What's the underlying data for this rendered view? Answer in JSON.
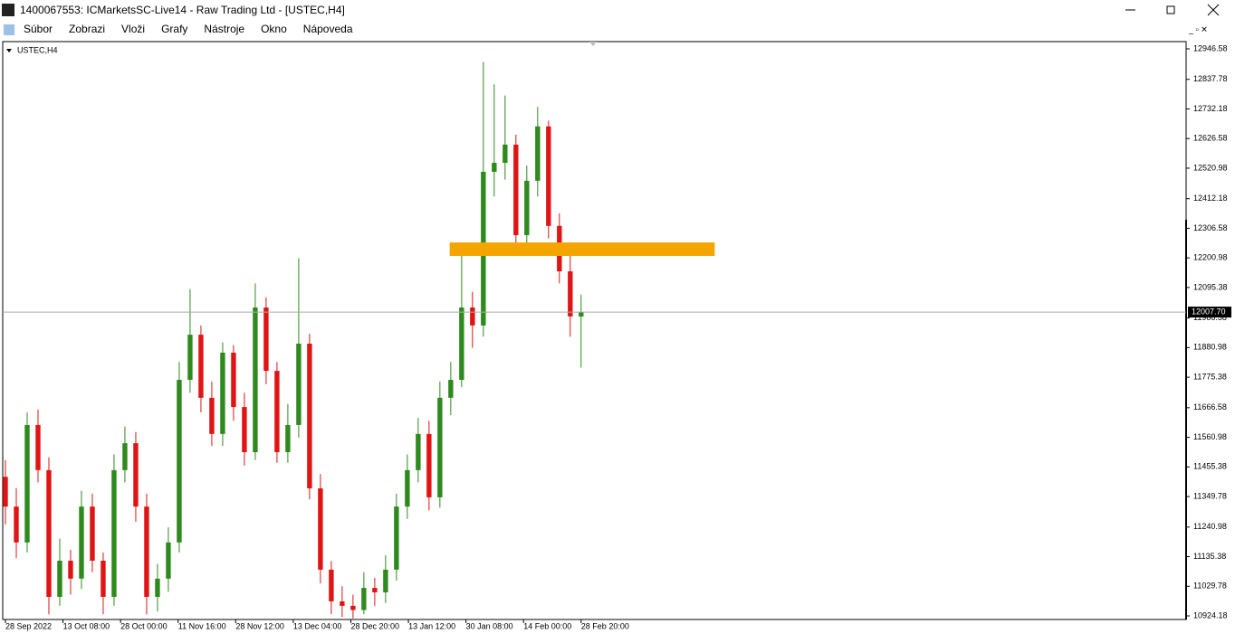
{
  "window": {
    "title": "1400067553: ICMarketsSC-Live14 - Raw Trading Ltd - [USTEC,H4]"
  },
  "menu": [
    "Súbor",
    "Zobrazi",
    "Vloži",
    "Grafy",
    "Nástroje",
    "Okno",
    "Nápoveda"
  ],
  "chart_data": {
    "type": "candlestick",
    "symbol": "USTEC,H4",
    "open": [
      11420,
      11314,
      11186,
      11605,
      11444,
      10992,
      11121,
      11057,
      11314,
      11121,
      10992,
      11444,
      11540,
      11314,
      10992,
      11057,
      11186,
      11766,
      11927,
      11702,
      11573,
      11863,
      11669,
      11508,
      12024,
      11798,
      11508,
      11605,
      11895,
      11379,
      11089,
      10976,
      10960,
      10945,
      11024,
      11008,
      11089,
      11314,
      11444,
      11573,
      11347,
      11702,
      11766,
      12024,
      11960,
      12508,
      12540,
      12605,
      12282,
      12476,
      12670,
      12315,
      12153,
      11992
    ],
    "high": [
      11480,
      11380,
      11650,
      11660,
      11490,
      11200,
      11160,
      11370,
      11360,
      11150,
      11500,
      11600,
      11580,
      11360,
      11110,
      11240,
      11830,
      12090,
      11960,
      11760,
      11900,
      11890,
      11720,
      12110,
      12060,
      11830,
      11680,
      12200,
      11930,
      11430,
      11120,
      11030,
      11000,
      11080,
      11060,
      11140,
      11360,
      11500,
      11630,
      11620,
      11760,
      11830,
      12245,
      12080,
      12900,
      12820,
      12780,
      12640,
      12530,
      12740,
      12690,
      12360,
      12220,
      12070
    ],
    "low": [
      11250,
      11130,
      11150,
      11400,
      10930,
      10960,
      11000,
      11020,
      11080,
      10930,
      10960,
      11400,
      11260,
      10930,
      10940,
      11010,
      11150,
      11720,
      11650,
      11530,
      11530,
      11620,
      11460,
      11480,
      11750,
      11470,
      11470,
      11560,
      11340,
      11040,
      10930,
      10920,
      10915,
      10930,
      10960,
      10970,
      11050,
      11270,
      11400,
      11300,
      11310,
      11640,
      11740,
      11880,
      11920,
      12420,
      12480,
      12220,
      12230,
      12420,
      12270,
      12110,
      11920,
      11810
    ],
    "close": [
      11314,
      11186,
      11605,
      11444,
      10992,
      11121,
      11057,
      11314,
      11121,
      10992,
      11444,
      11540,
      11314,
      10992,
      11057,
      11186,
      11766,
      11927,
      11702,
      11573,
      11863,
      11669,
      11508,
      12024,
      11798,
      11508,
      11605,
      11895,
      11379,
      11089,
      10976,
      10960,
      10945,
      11024,
      11008,
      11089,
      11314,
      11444,
      11573,
      11347,
      11702,
      11766,
      12024,
      11960,
      12508,
      12540,
      12605,
      12282,
      12476,
      12670,
      12315,
      12153,
      11992,
      12007.7
    ],
    "up_color": "#2f8a1e",
    "down_color": "#e01414",
    "xlim": [
      -0.25,
      108.7
    ],
    "ylim": [
      10911.3,
      12972.4
    ],
    "yticks": [
      12946.58,
      12837.78,
      12732.18,
      12626.58,
      12520.98,
      12412.18,
      12306.58,
      12200.98,
      12095.38,
      11986.58,
      11880.98,
      11775.38,
      11666.58,
      11560.98,
      11455.38,
      11349.78,
      11240.98,
      11135.38,
      11029.78,
      10924.18
    ],
    "xticks": [
      {
        "value": 0,
        "label": "28 Sep 2022"
      },
      {
        "value": 5.3,
        "label": "13 Oct 08:00"
      },
      {
        "value": 10.6,
        "label": "28 Oct 00:00"
      },
      {
        "value": 15.9,
        "label": "11 Nov 16:00"
      },
      {
        "value": 21.2,
        "label": "28 Nov 12:00"
      },
      {
        "value": 26.5,
        "label": "13 Dec 04:00"
      },
      {
        "value": 31.8,
        "label": "28 Dec 20:00"
      },
      {
        "value": 37.1,
        "label": "13 Jan 12:00"
      },
      {
        "value": 42.4,
        "label": "30 Jan 08:00"
      },
      {
        "value": 47.7,
        "label": "14 Feb 00:00"
      },
      {
        "value": 53,
        "label": "28 Feb 20:00"
      }
    ],
    "current_price": {
      "value": 12007.7,
      "label": "12007.70"
    },
    "zone": {
      "x": [
        40.9,
        65.3
      ],
      "y": [
        12208,
        12256
      ],
      "color": "#f5a500"
    }
  }
}
